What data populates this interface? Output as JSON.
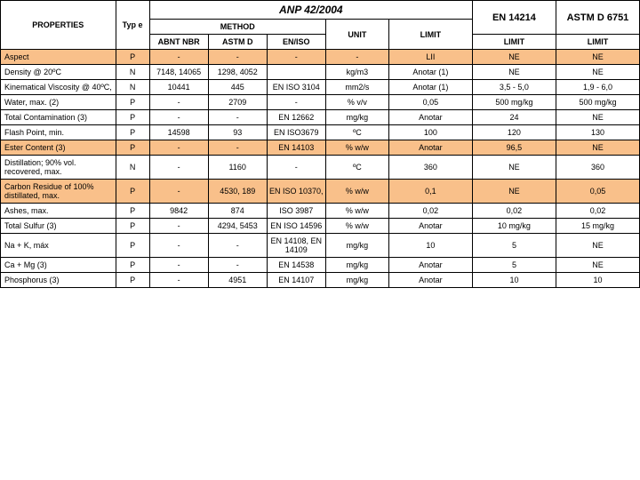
{
  "colors": {
    "orange": "#f9c08a",
    "border": "#000000",
    "bg": "#ffffff"
  },
  "header": {
    "anp": "ANP 42/2004",
    "en14214": "EN 14214",
    "astm": "ASTM D 6751",
    "properties": "PROPERTIES",
    "type": "Typ e",
    "method": "METHOD",
    "abnt": "ABNT NBR",
    "astmd": "ASTM D",
    "eniso": "EN/ISO",
    "unit": "UNIT",
    "limit": "LIMIT"
  },
  "rows": [
    {
      "orange": true,
      "prop": "Aspect",
      "type": "P",
      "abnt": "-",
      "astmd": "-",
      "eniso": "-",
      "unit": "-",
      "anp": "LII",
      "en": "NE",
      "astm": "NE"
    },
    {
      "orange": false,
      "prop": "Density @ 20ºC",
      "type": "N",
      "abnt": "7148, 14065",
      "astmd": "1298, 4052",
      "eniso": "",
      "unit": "kg/m3",
      "anp": "Anotar (1)",
      "en": "NE",
      "astm": "NE"
    },
    {
      "orange": false,
      "prop": " Kinematical Viscosity @ 40ºC,",
      "type": "N",
      "abnt": "10441",
      "astmd": "445",
      "eniso": "EN ISO 3104",
      "unit": "mm2/s",
      "anp": "Anotar (1)",
      "en": "3,5 - 5,0",
      "astm": "1,9 - 6,0"
    },
    {
      "orange": false,
      "prop": " Water, max. (2)",
      "type": "P",
      "abnt": "-",
      "astmd": "2709",
      "eniso": "-",
      "unit": "% v/v",
      "anp": "0,05",
      "en": "500 mg/kg",
      "astm": "500 mg/kg"
    },
    {
      "orange": false,
      "prop": " Total Contamination (3)",
      "type": "P",
      "abnt": "-",
      "astmd": "-",
      "eniso": "EN 12662",
      "unit": "mg/kg",
      "anp": "Anotar",
      "en": "24",
      "astm": "NE"
    },
    {
      "orange": false,
      "prop": " Flash Point, min.",
      "type": "P",
      "abnt": "14598",
      "astmd": "93",
      "eniso": "EN ISO3679",
      "unit": "ºC",
      "anp": "100",
      "en": "120",
      "astm": "130"
    },
    {
      "orange": true,
      "prop": "Ester Content (3)",
      "type": "P",
      "abnt": "-",
      "astmd": "-",
      "eniso": "EN 14103",
      "unit": "% w/w",
      "anp": "Anotar",
      "en": "96,5",
      "astm": "NE"
    },
    {
      "orange": false,
      "prop": " Distillation; 90% vol. recovered, max.",
      "type": "N",
      "abnt": "-",
      "astmd": "1160",
      "eniso": "-",
      "unit": "ºC",
      "anp": "360",
      "en": "NE",
      "astm": "360"
    },
    {
      "orange": true,
      "prop": "Carbon Residue of 100% distillated, max.",
      "type": "P",
      "abnt": "-",
      "astmd": "4530, 189",
      "eniso": "EN ISO 10370,",
      "unit": "% w/w",
      "anp": "0,1",
      "en": "NE",
      "astm": "0,05"
    },
    {
      "orange": false,
      "prop": " Ashes, max.",
      "type": "P",
      "abnt": "9842",
      "astmd": "874",
      "eniso": "ISO 3987",
      "unit": "% w/w",
      "anp": "0,02",
      "en": "0,02",
      "astm": "0,02"
    },
    {
      "orange": false,
      "prop": "Total Sulfur (3)",
      "type": "P",
      "abnt": "-",
      "astmd": "4294, 5453",
      "eniso": "EN ISO 14596",
      "unit": "% w/w",
      "anp": "Anotar",
      "en": "10 mg/kg",
      "astm": "15 mg/kg"
    },
    {
      "orange": false,
      "prop": " Na + K, máx",
      "type": "P",
      "abnt": "-",
      "astmd": "-",
      "eniso": "EN 14108, EN 14109",
      "unit": "mg/kg",
      "anp": "10",
      "en": "5",
      "astm": "NE"
    },
    {
      "orange": false,
      "prop": " Ca + Mg (3)",
      "type": "P",
      "abnt": "-",
      "astmd": "-",
      "eniso": "EN 14538",
      "unit": "mg/kg",
      "anp": "Anotar",
      "en": "5",
      "astm": "NE"
    },
    {
      "orange": false,
      "prop": " Phosphorus (3)",
      "type": "P",
      "abnt": "-",
      "astmd": "4951",
      "eniso": "EN 14107",
      "unit": "mg/kg",
      "anp": "Anotar",
      "en": "10",
      "astm": "10"
    }
  ]
}
